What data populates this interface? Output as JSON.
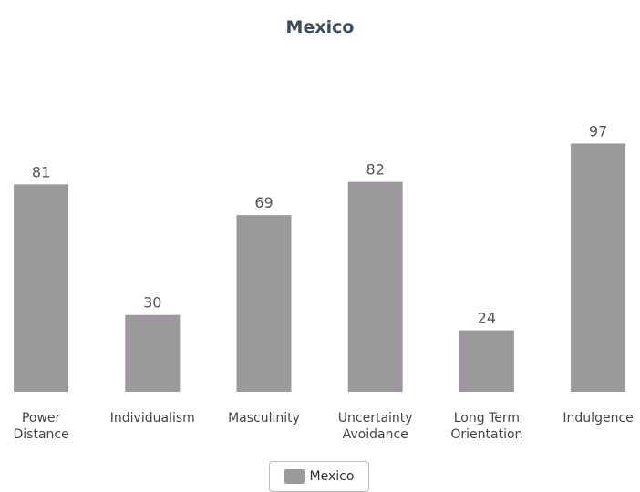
{
  "chart_data": {
    "type": "bar",
    "title": "Mexico",
    "categories": [
      "Power Distance",
      "Individualism",
      "Masculinity",
      "Uncertainty Avoidance",
      "Long Term Orientation",
      "Indulgence"
    ],
    "series": [
      {
        "name": "Mexico",
        "color": "#9b999b",
        "values": [
          81,
          30,
          69,
          82,
          24,
          97
        ]
      }
    ],
    "ylim": [
      0,
      100
    ]
  }
}
